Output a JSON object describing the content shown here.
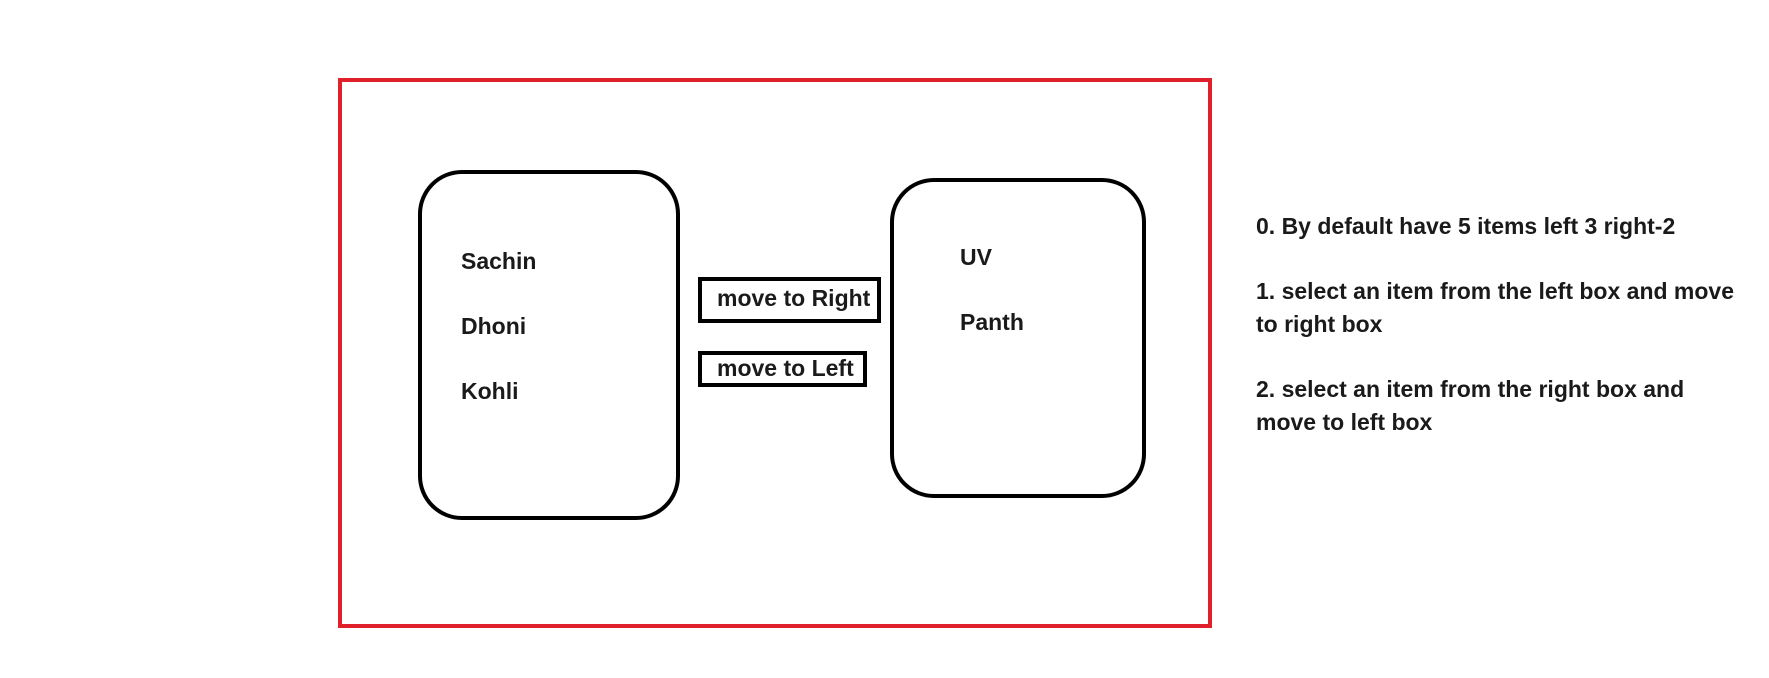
{
  "left_box": {
    "items": [
      "Sachin",
      "Dhoni",
      "Kohli"
    ]
  },
  "right_box": {
    "items": [
      "UV",
      "Panth"
    ]
  },
  "buttons": {
    "move_right_label": "move to Right",
    "move_left_label": "move to Left"
  },
  "notes": [
    "0. By default have 5 items left 3 right-2",
    "1. select an item from the left box and move to right box",
    "2. select an item from the right box and move to left box"
  ],
  "colors": {
    "frame_border": "#e0202a",
    "box_border": "#000000"
  }
}
